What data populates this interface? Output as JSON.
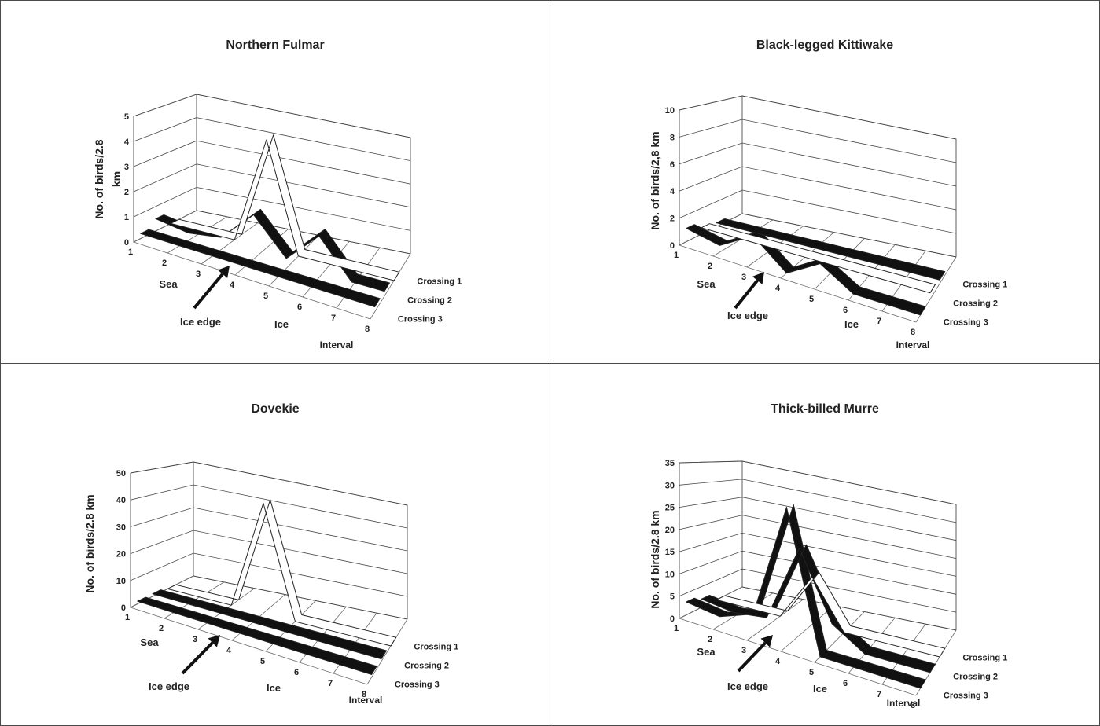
{
  "chart_data": [
    {
      "type": "line",
      "chart_style": "3d-ribbon",
      "title": "Northern Fulmar",
      "ylabel": "No. of birds/2.8 km",
      "ylabel_lines": [
        "No. of birds/2.8",
        "km"
      ],
      "xlabel": "Interval",
      "ylim": [
        0,
        5
      ],
      "yticks": [
        "0",
        "1",
        "2",
        "3",
        "4",
        "5"
      ],
      "x": [
        "1",
        "2",
        "3",
        "4",
        "5",
        "6",
        "7",
        "8"
      ],
      "annotations": {
        "sea": "Sea",
        "ice": "Ice",
        "ice_edge": "Ice edge"
      },
      "series": [
        {
          "name": "Crossing 1",
          "values": [
            0,
            0,
            0,
            4.5,
            0,
            0,
            0,
            0
          ],
          "fill": "#ffffff"
        },
        {
          "name": "Crossing 2",
          "values": [
            0.5,
            0.3,
            0.5,
            1.8,
            0.4,
            1.7,
            0.2,
            0.2
          ],
          "fill": "#111111"
        },
        {
          "name": "Crossing 3",
          "values": [
            0.2,
            0.2,
            0.2,
            0.2,
            0.2,
            0.2,
            0.2,
            0.2
          ],
          "fill": "#111111"
        }
      ]
    },
    {
      "type": "line",
      "chart_style": "3d-ribbon",
      "title": "Black-legged Kittiwake",
      "ylabel": "No. of birds/2,8 km",
      "ylabel_lines": [
        "No. of birds/2,8 km"
      ],
      "xlabel": "Interval",
      "ylim": [
        0,
        10
      ],
      "yticks": [
        "0",
        "2",
        "4",
        "6",
        "8",
        "10"
      ],
      "x": [
        "1",
        "2",
        "3",
        "4",
        "5",
        "6",
        "7",
        "8"
      ],
      "annotations": {
        "sea": "Sea",
        "ice": "Ice",
        "ice_edge": "Ice edge"
      },
      "series": [
        {
          "name": "Crossing 1",
          "values": [
            0.3,
            0.3,
            0.3,
            0.3,
            0.3,
            0.3,
            0.3,
            0.3
          ],
          "fill": "#111111"
        },
        {
          "name": "Crossing 2",
          "values": [
            0.5,
            0.5,
            0.5,
            0.5,
            0.5,
            0.5,
            0.5,
            0.5
          ],
          "fill": "#ffffff"
        },
        {
          "name": "Crossing 3",
          "values": [
            1.0,
            0.5,
            2.0,
            0.0,
            1.5,
            0.0,
            0.0,
            0.0
          ],
          "fill": "#111111"
        }
      ]
    },
    {
      "type": "line",
      "chart_style": "3d-ribbon",
      "title": "Dovekie",
      "ylabel": "No. of birds/2.8 km",
      "ylabel_lines": [
        "No. of birds/2.8 km"
      ],
      "xlabel": "Interval",
      "ylim": [
        0,
        50
      ],
      "yticks": [
        "0",
        "10",
        "20",
        "30",
        "40",
        "50"
      ],
      "x": [
        "1",
        "2",
        "3",
        "4",
        "5",
        "6",
        "7",
        "8"
      ],
      "annotations": {
        "sea": "Sea",
        "ice": "Ice",
        "ice_edge": "Ice edge"
      },
      "series": [
        {
          "name": "Crossing 1",
          "values": [
            0,
            0,
            0,
            45,
            0,
            0,
            0,
            0
          ],
          "fill": "#ffffff"
        },
        {
          "name": "Crossing 2",
          "values": [
            1,
            1,
            1,
            1,
            1,
            1,
            1,
            1
          ],
          "fill": "#111111"
        },
        {
          "name": "Crossing 3",
          "values": [
            1,
            1,
            1,
            1,
            1,
            1,
            1,
            1
          ],
          "fill": "#111111"
        }
      ]
    },
    {
      "type": "line",
      "chart_style": "3d-ribbon",
      "title": "Thick-billed Murre",
      "ylabel": "No. of birds/2.8 km",
      "ylabel_lines": [
        "No. of birds/2.8 km"
      ],
      "xlabel": "Interval",
      "ylim": [
        0,
        35
      ],
      "yticks": [
        "0",
        "5",
        "10",
        "15",
        "20",
        "25",
        "30",
        "35"
      ],
      "x": [
        "1",
        "2",
        "3",
        "4",
        "5",
        "6",
        "7",
        "8"
      ],
      "annotations": {
        "sea": "Sea",
        "ice": "Ice",
        "ice_edge": "Ice edge"
      },
      "series": [
        {
          "name": "Crossing 1",
          "values": [
            0,
            0,
            0,
            12,
            0,
            0,
            0,
            0
          ],
          "fill": "#ffffff"
        },
        {
          "name": "Crossing 2",
          "values": [
            2,
            1,
            2,
            21,
            5,
            0,
            0,
            0
          ],
          "fill": "#111111"
        },
        {
          "name": "Crossing 3",
          "values": [
            3,
            2,
            5,
            32,
            0,
            0,
            0,
            0
          ],
          "fill": "#111111"
        }
      ]
    }
  ]
}
